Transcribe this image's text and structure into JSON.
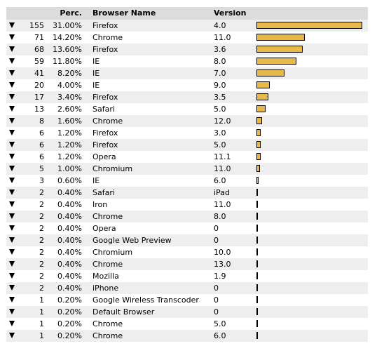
{
  "header": {
    "perc": "Perc.",
    "browser_name": "Browser Name",
    "version": "Version"
  },
  "colors": {
    "bar_fill": "#e8b84a",
    "bar_border": "#000000",
    "header_bg": "#dcdcdc",
    "alt_row_bg": "#eeeeee"
  },
  "icons": {
    "row_expand": "down-triangle-icon"
  },
  "rows": [
    {
      "count": "155",
      "perc": "31.00%",
      "name": "Firefox",
      "version": "4.0",
      "share": 31.0
    },
    {
      "count": "71",
      "perc": "14.20%",
      "name": "Chrome",
      "version": "11.0",
      "share": 14.2
    },
    {
      "count": "68",
      "perc": "13.60%",
      "name": "Firefox",
      "version": "3.6",
      "share": 13.6
    },
    {
      "count": "59",
      "perc": "11.80%",
      "name": "IE",
      "version": "8.0",
      "share": 11.8
    },
    {
      "count": "41",
      "perc": "8.20%",
      "name": "IE",
      "version": "7.0",
      "share": 8.2
    },
    {
      "count": "20",
      "perc": "4.00%",
      "name": "IE",
      "version": "9.0",
      "share": 4.0
    },
    {
      "count": "17",
      "perc": "3.40%",
      "name": "Firefox",
      "version": "3.5",
      "share": 3.4
    },
    {
      "count": "13",
      "perc": "2.60%",
      "name": "Safari",
      "version": "5.0",
      "share": 2.6
    },
    {
      "count": "8",
      "perc": "1.60%",
      "name": "Chrome",
      "version": "12.0",
      "share": 1.6
    },
    {
      "count": "6",
      "perc": "1.20%",
      "name": "Firefox",
      "version": "3.0",
      "share": 1.2
    },
    {
      "count": "6",
      "perc": "1.20%",
      "name": "Firefox",
      "version": "5.0",
      "share": 1.2
    },
    {
      "count": "6",
      "perc": "1.20%",
      "name": "Opera",
      "version": "11.1",
      "share": 1.2
    },
    {
      "count": "5",
      "perc": "1.00%",
      "name": "Chromium",
      "version": "11.0",
      "share": 1.0
    },
    {
      "count": "3",
      "perc": "0.60%",
      "name": "IE",
      "version": "6.0",
      "share": 0.6
    },
    {
      "count": "2",
      "perc": "0.40%",
      "name": "Safari",
      "version": "iPad",
      "share": 0.4
    },
    {
      "count": "2",
      "perc": "0.40%",
      "name": "Iron",
      "version": "11.0",
      "share": 0.4
    },
    {
      "count": "2",
      "perc": "0.40%",
      "name": "Chrome",
      "version": "8.0",
      "share": 0.4
    },
    {
      "count": "2",
      "perc": "0.40%",
      "name": "Opera",
      "version": "0",
      "share": 0.4
    },
    {
      "count": "2",
      "perc": "0.40%",
      "name": "Google Web Preview",
      "version": "0",
      "share": 0.4
    },
    {
      "count": "2",
      "perc": "0.40%",
      "name": "Chromium",
      "version": "10.0",
      "share": 0.4
    },
    {
      "count": "2",
      "perc": "0.40%",
      "name": "Chrome",
      "version": "13.0",
      "share": 0.4
    },
    {
      "count": "2",
      "perc": "0.40%",
      "name": "Mozilla",
      "version": "1.9",
      "share": 0.4
    },
    {
      "count": "2",
      "perc": "0.40%",
      "name": "iPhone",
      "version": "0",
      "share": 0.4
    },
    {
      "count": "1",
      "perc": "0.20%",
      "name": "Google Wireless Transcoder",
      "version": "0",
      "share": 0.2
    },
    {
      "count": "1",
      "perc": "0.20%",
      "name": "Default Browser",
      "version": "0",
      "share": 0.2
    },
    {
      "count": "1",
      "perc": "0.20%",
      "name": "Chrome",
      "version": "5.0",
      "share": 0.2
    },
    {
      "count": "1",
      "perc": "0.20%",
      "name": "Chrome",
      "version": "6.0",
      "share": 0.2
    }
  ]
}
